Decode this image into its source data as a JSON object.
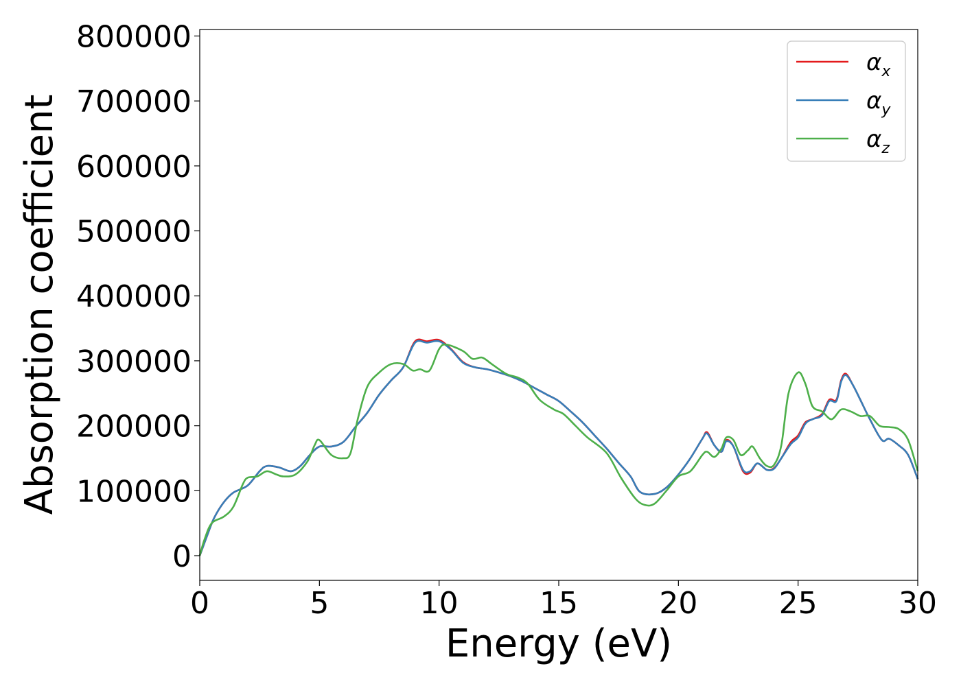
{
  "chart_data": {
    "type": "line",
    "xlabel": "Energy (eV)",
    "ylabel": "Absorption coefficient",
    "xlim": [
      0,
      30
    ],
    "ylim": [
      -38000,
      810000
    ],
    "x_ticks": [
      0,
      5,
      10,
      15,
      20,
      25,
      30
    ],
    "y_ticks": [
      0,
      100000,
      200000,
      300000,
      400000,
      500000,
      600000,
      700000,
      800000
    ],
    "x_tick_labels": [
      "0",
      "5",
      "10",
      "15",
      "20",
      "25",
      "30"
    ],
    "y_tick_labels": [
      "0",
      "100000",
      "200000",
      "300000",
      "400000",
      "500000",
      "600000",
      "700000",
      "800000"
    ],
    "grid": false,
    "legend_position": "top-right",
    "series": [
      {
        "name": "αx",
        "symbol": "α",
        "subscript": "x",
        "color": "#e41a1c",
        "points": [
          [
            0,
            0
          ],
          [
            0.3,
            30000
          ],
          [
            0.6,
            58000
          ],
          [
            1.0,
            82000
          ],
          [
            1.4,
            97000
          ],
          [
            2.0,
            108000
          ],
          [
            2.5,
            130000
          ],
          [
            2.8,
            138000
          ],
          [
            3.3,
            136000
          ],
          [
            3.8,
            130000
          ],
          [
            4.2,
            138000
          ],
          [
            4.6,
            155000
          ],
          [
            5.0,
            168000
          ],
          [
            5.5,
            168000
          ],
          [
            6.0,
            175000
          ],
          [
            6.5,
            198000
          ],
          [
            7.0,
            220000
          ],
          [
            7.5,
            248000
          ],
          [
            8.0,
            270000
          ],
          [
            8.5,
            290000
          ],
          [
            9.0,
            330000
          ],
          [
            9.5,
            330000
          ],
          [
            10.0,
            332000
          ],
          [
            10.5,
            318000
          ],
          [
            11.0,
            298000
          ],
          [
            11.5,
            290000
          ],
          [
            12.0,
            287000
          ],
          [
            12.5,
            282000
          ],
          [
            13.0,
            276000
          ],
          [
            13.5,
            268000
          ],
          [
            14.0,
            258000
          ],
          [
            14.5,
            248000
          ],
          [
            15.0,
            238000
          ],
          [
            15.5,
            222000
          ],
          [
            16.0,
            205000
          ],
          [
            16.5,
            185000
          ],
          [
            17.0,
            165000
          ],
          [
            17.5,
            143000
          ],
          [
            18.0,
            122000
          ],
          [
            18.4,
            98000
          ],
          [
            19.0,
            95000
          ],
          [
            19.5,
            105000
          ],
          [
            20.0,
            125000
          ],
          [
            20.5,
            150000
          ],
          [
            21.0,
            180000
          ],
          [
            21.2,
            190000
          ],
          [
            21.5,
            170000
          ],
          [
            21.8,
            160000
          ],
          [
            22.0,
            178000
          ],
          [
            22.3,
            168000
          ],
          [
            22.7,
            130000
          ],
          [
            23.0,
            128000
          ],
          [
            23.3,
            142000
          ],
          [
            23.7,
            132000
          ],
          [
            24.0,
            135000
          ],
          [
            24.3,
            150000
          ],
          [
            24.7,
            175000
          ],
          [
            25.0,
            185000
          ],
          [
            25.3,
            205000
          ],
          [
            25.6,
            210000
          ],
          [
            26.0,
            218000
          ],
          [
            26.3,
            240000
          ],
          [
            26.6,
            240000
          ],
          [
            26.8,
            270000
          ],
          [
            27.0,
            280000
          ],
          [
            27.3,
            262000
          ],
          [
            27.6,
            240000
          ],
          [
            28.0,
            210000
          ],
          [
            28.5,
            178000
          ],
          [
            28.8,
            180000
          ],
          [
            29.2,
            170000
          ],
          [
            29.6,
            155000
          ],
          [
            30.0,
            118000
          ]
        ]
      },
      {
        "name": "αy",
        "symbol": "α",
        "subscript": "y",
        "color": "#377eb8",
        "points": [
          [
            0,
            0
          ],
          [
            0.3,
            30000
          ],
          [
            0.6,
            58000
          ],
          [
            1.0,
            82000
          ],
          [
            1.4,
            97000
          ],
          [
            2.0,
            108000
          ],
          [
            2.5,
            130000
          ],
          [
            2.8,
            138000
          ],
          [
            3.3,
            136000
          ],
          [
            3.8,
            130000
          ],
          [
            4.2,
            138000
          ],
          [
            4.6,
            155000
          ],
          [
            5.0,
            168000
          ],
          [
            5.5,
            168000
          ],
          [
            6.0,
            175000
          ],
          [
            6.5,
            198000
          ],
          [
            7.0,
            220000
          ],
          [
            7.5,
            248000
          ],
          [
            8.0,
            270000
          ],
          [
            8.5,
            290000
          ],
          [
            9.0,
            328000
          ],
          [
            9.5,
            328000
          ],
          [
            10.0,
            330000
          ],
          [
            10.5,
            317000
          ],
          [
            11.0,
            297000
          ],
          [
            11.5,
            290000
          ],
          [
            12.0,
            287000
          ],
          [
            12.5,
            282000
          ],
          [
            13.0,
            276000
          ],
          [
            13.5,
            268000
          ],
          [
            14.0,
            258000
          ],
          [
            14.5,
            248000
          ],
          [
            15.0,
            238000
          ],
          [
            15.5,
            222000
          ],
          [
            16.0,
            205000
          ],
          [
            16.5,
            185000
          ],
          [
            17.0,
            165000
          ],
          [
            17.5,
            143000
          ],
          [
            18.0,
            122000
          ],
          [
            18.4,
            98000
          ],
          [
            19.0,
            95000
          ],
          [
            19.5,
            105000
          ],
          [
            20.0,
            125000
          ],
          [
            20.5,
            150000
          ],
          [
            21.0,
            180000
          ],
          [
            21.2,
            188000
          ],
          [
            21.5,
            170000
          ],
          [
            21.8,
            160000
          ],
          [
            22.0,
            176000
          ],
          [
            22.3,
            168000
          ],
          [
            22.7,
            132000
          ],
          [
            23.0,
            130000
          ],
          [
            23.3,
            142000
          ],
          [
            23.7,
            132000
          ],
          [
            24.0,
            134000
          ],
          [
            24.3,
            150000
          ],
          [
            24.7,
            172000
          ],
          [
            25.0,
            182000
          ],
          [
            25.3,
            203000
          ],
          [
            25.6,
            210000
          ],
          [
            26.0,
            216000
          ],
          [
            26.3,
            238000
          ],
          [
            26.6,
            238000
          ],
          [
            26.8,
            268000
          ],
          [
            27.0,
            278000
          ],
          [
            27.3,
            262000
          ],
          [
            27.6,
            240000
          ],
          [
            28.0,
            210000
          ],
          [
            28.5,
            178000
          ],
          [
            28.8,
            180000
          ],
          [
            29.2,
            170000
          ],
          [
            29.6,
            155000
          ],
          [
            30.0,
            118000
          ]
        ]
      },
      {
        "name": "αz",
        "symbol": "α",
        "subscript": "z",
        "color": "#4daf4a",
        "points": [
          [
            0,
            0
          ],
          [
            0.2,
            25000
          ],
          [
            0.5,
            50000
          ],
          [
            1.0,
            60000
          ],
          [
            1.4,
            75000
          ],
          [
            1.8,
            110000
          ],
          [
            2.0,
            120000
          ],
          [
            2.4,
            122000
          ],
          [
            2.8,
            130000
          ],
          [
            3.2,
            125000
          ],
          [
            3.5,
            122000
          ],
          [
            4.0,
            125000
          ],
          [
            4.5,
            145000
          ],
          [
            4.8,
            170000
          ],
          [
            5.0,
            178000
          ],
          [
            5.5,
            155000
          ],
          [
            6.0,
            150000
          ],
          [
            6.3,
            158000
          ],
          [
            6.6,
            210000
          ],
          [
            7.0,
            260000
          ],
          [
            7.5,
            282000
          ],
          [
            8.0,
            295000
          ],
          [
            8.5,
            295000
          ],
          [
            8.9,
            285000
          ],
          [
            9.2,
            287000
          ],
          [
            9.6,
            285000
          ],
          [
            10.0,
            318000
          ],
          [
            10.3,
            325000
          ],
          [
            11.0,
            315000
          ],
          [
            11.4,
            303000
          ],
          [
            11.8,
            305000
          ],
          [
            12.2,
            295000
          ],
          [
            12.8,
            280000
          ],
          [
            13.3,
            274000
          ],
          [
            13.7,
            265000
          ],
          [
            14.2,
            240000
          ],
          [
            14.8,
            225000
          ],
          [
            15.2,
            218000
          ],
          [
            15.7,
            200000
          ],
          [
            16.2,
            182000
          ],
          [
            17.0,
            158000
          ],
          [
            17.6,
            120000
          ],
          [
            18.2,
            88000
          ],
          [
            18.6,
            78000
          ],
          [
            19.0,
            80000
          ],
          [
            19.5,
            100000
          ],
          [
            20.0,
            122000
          ],
          [
            20.5,
            130000
          ],
          [
            21.0,
            155000
          ],
          [
            21.2,
            160000
          ],
          [
            21.5,
            152000
          ],
          [
            21.8,
            165000
          ],
          [
            22.0,
            182000
          ],
          [
            22.3,
            178000
          ],
          [
            22.6,
            155000
          ],
          [
            22.9,
            162000
          ],
          [
            23.1,
            168000
          ],
          [
            23.4,
            150000
          ],
          [
            23.7,
            138000
          ],
          [
            24.0,
            140000
          ],
          [
            24.3,
            170000
          ],
          [
            24.6,
            250000
          ],
          [
            25.0,
            282000
          ],
          [
            25.3,
            265000
          ],
          [
            25.6,
            230000
          ],
          [
            26.0,
            222000
          ],
          [
            26.4,
            210000
          ],
          [
            26.8,
            225000
          ],
          [
            27.2,
            222000
          ],
          [
            27.6,
            215000
          ],
          [
            28.0,
            215000
          ],
          [
            28.4,
            200000
          ],
          [
            28.8,
            198000
          ],
          [
            29.2,
            195000
          ],
          [
            29.6,
            178000
          ],
          [
            30.0,
            130000
          ]
        ]
      }
    ]
  }
}
